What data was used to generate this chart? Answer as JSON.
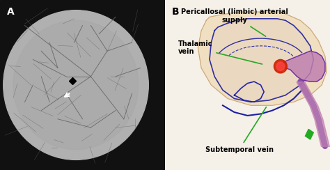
{
  "panel_a_label": "A",
  "panel_b_label": "B",
  "label_thalamic_vein": "Thalamic\nvein",
  "label_pericallosal": "Pericallosal (limbic) arterial\nsupply",
  "label_subtemporal": "Subtemporal vein",
  "label_fontsize": 7,
  "panel_label_fontsize": 10,
  "bg_color": "#ffffff",
  "text_color": "#000000",
  "annotation_color": "#22aa22",
  "figure_width": 4.74,
  "figure_height": 2.44,
  "dpi": 100
}
